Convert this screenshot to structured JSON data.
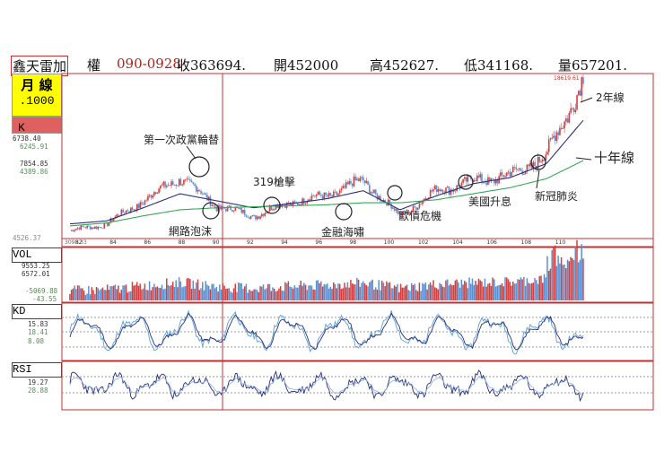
{
  "header": {
    "name": "鑫天雷加",
    "right": "權",
    "code": "090-0928",
    "close": "收363694.",
    "open": "開452000",
    "high": "高452627.",
    "low": "低341168.",
    "volume": "量657201."
  },
  "main_panel": {
    "period": "月 線",
    "value": ".1000",
    "k_label": "K",
    "left_values": [
      "6738.40",
      "6245.91",
      "7854.85",
      "4389.86",
      "4526.37"
    ],
    "bottom_left": "3098.33",
    "peak_label": "18619.61"
  },
  "vol_panel": {
    "label": "VOL",
    "values": [
      "9553.25",
      "6572.01",
      "-5069.88",
      "-43.55"
    ]
  },
  "kd_panel": {
    "label": "KD",
    "values": [
      "15.83",
      "18.41",
      "8.08"
    ]
  },
  "rsi_panel": {
    "label": "RSI",
    "values": [
      "19.27",
      "28.88"
    ]
  },
  "x_ticks": [
    "82",
    "84",
    "86",
    "88",
    "90",
    "92",
    "94",
    "96",
    "98",
    "100",
    "102",
    "104",
    "106",
    "108",
    "110"
  ],
  "annotations": {
    "a1": "第一次政黨輪替",
    "a2": "319槍擊",
    "a3": "網路泡沫",
    "a4": "金融海嘯",
    "a5": "歐債危機",
    "a6": "美國升息",
    "a7": "新冠肺炎",
    "a8": "2年線",
    "a9": "十年線"
  },
  "colors": {
    "accent": "#c03030",
    "yellow_box": "#ffff00",
    "k_box": "#e06060",
    "up_candle": "#d04040",
    "down_candle": "#5a8fd0",
    "ma2": "#2a2f7a",
    "ma10": "#3aa65a"
  },
  "chart_data": {
    "type": "line",
    "x": [
      "82",
      "84",
      "86",
      "88",
      "90",
      "92",
      "94",
      "96",
      "98",
      "100",
      "102",
      "104",
      "106",
      "108",
      "110"
    ],
    "series": [
      {
        "values": [
          3500,
          4200,
          6500,
          8800,
          6000,
          5000,
          6300,
          7000,
          8500,
          5000,
          7500,
          8500,
          9000,
          11000,
          18619
        ]
      },
      {
        "name": "2年線",
        "values": [
          4200,
          4500,
          5800,
          7200,
          6500,
          5800,
          6200,
          6700,
          7500,
          5600,
          7000,
          8200,
          8800,
          10200,
          14500
        ]
      },
      {
        "name": "十年線",
        "values": [
          4000,
          4300,
          5000,
          5600,
          5800,
          5900,
          6000,
          6100,
          6300,
          6300,
          6600,
          7200,
          7800,
          8700,
          10500
        ]
      }
    ],
    "ylim": [
      3098.33,
      18619.61
    ]
  }
}
